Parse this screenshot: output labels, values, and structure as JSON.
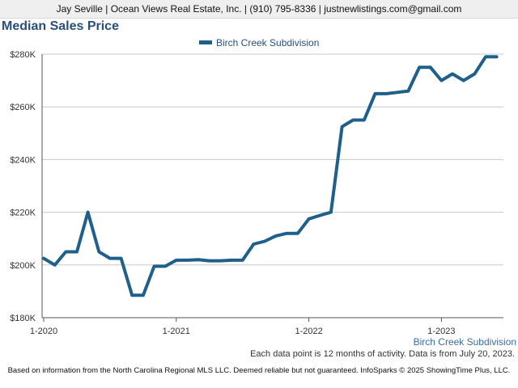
{
  "header": {
    "contact_line": "Jay Seville | Ocean Views Real Estate, Inc. | (910) 795-8336 | justnewlistings.com@gmail.com"
  },
  "chart_data": {
    "type": "line",
    "title": "Median Sales Price",
    "x_tick_labels": [
      "1-2020",
      "1-2021",
      "1-2022",
      "1-2023"
    ],
    "y_tick_labels": [
      "$180K",
      "$200K",
      "$220K",
      "$240K",
      "$260K",
      "$280K"
    ],
    "ylim": [
      180000,
      280000
    ],
    "grid": true,
    "legend_position": "top-center",
    "series": [
      {
        "name": "Birch Creek Subdivision",
        "color": "#1f5f8b",
        "x": [
          "2020-01",
          "2020-02",
          "2020-03",
          "2020-04",
          "2020-05",
          "2020-06",
          "2020-07",
          "2020-08",
          "2020-09",
          "2020-10",
          "2020-11",
          "2020-12",
          "2021-01",
          "2021-02",
          "2021-03",
          "2021-04",
          "2021-05",
          "2021-06",
          "2021-07",
          "2021-08",
          "2021-09",
          "2021-10",
          "2021-11",
          "2021-12",
          "2022-01",
          "2022-02",
          "2022-03",
          "2022-04",
          "2022-05",
          "2022-06",
          "2022-07",
          "2022-08",
          "2022-09",
          "2022-10",
          "2022-11",
          "2022-12",
          "2023-01",
          "2023-02",
          "2023-03",
          "2023-04",
          "2023-05",
          "2023-06"
        ],
        "values": [
          202500,
          200000,
          205000,
          205000,
          220000,
          205000,
          202500,
          202500,
          188500,
          188500,
          199500,
          199500,
          201800,
          201800,
          202000,
          201600,
          201600,
          201800,
          201800,
          207900,
          209000,
          211000,
          212000,
          212000,
          217500,
          218800,
          220000,
          252500,
          255000,
          255000,
          265000,
          265000,
          265500,
          266000,
          275000,
          275000,
          270000,
          272500,
          270000,
          272500,
          279000,
          279000
        ]
      }
    ]
  },
  "series_tag": "Birch Creek Subdivision",
  "note": "Each data point is 12 months of activity. Data is from July 20, 2023.",
  "footer": "Based on information from the North Carolina Regional MLS LLC. Deemed reliable but not guaranteed. InfoSparks © 2025 ShowingTime Plus, LLC."
}
